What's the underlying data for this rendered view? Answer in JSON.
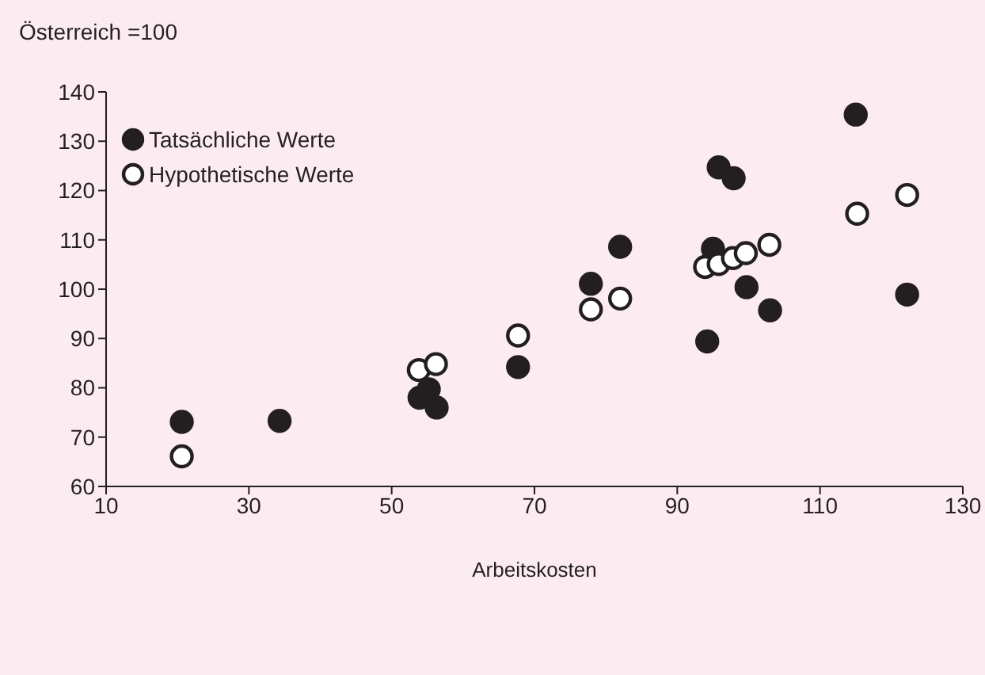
{
  "chart_data": {
    "type": "scatter",
    "ylabel": "Österreich =100",
    "xlabel": "Arbeitskosten",
    "xlim": [
      10,
      130
    ],
    "xticks": [
      10,
      30,
      50,
      70,
      90,
      110,
      130
    ],
    "ylim": [
      60,
      140
    ],
    "yticks": [
      60,
      70,
      80,
      90,
      100,
      110,
      120,
      130,
      140
    ],
    "grid": false,
    "legend": "top left",
    "marker": "circle",
    "series": [
      {
        "name": "Tatsächliche Werte",
        "color": "#231f20",
        "x": [
          20.6,
          34.3,
          53.9,
          55.2,
          56.3,
          67.7,
          77.9,
          82.0,
          94.2,
          95.0,
          95.8,
          97.9,
          99.7,
          103.0,
          115.0,
          122.2
        ],
        "values": [
          73.1,
          73.3,
          78.0,
          79.7,
          76.0,
          84.2,
          101.1,
          108.6,
          89.4,
          108.2,
          124.7,
          122.5,
          100.4,
          95.7,
          135.4,
          98.9
        ]
      },
      {
        "name": "Hypothetische Werte",
        "color": "#ffffff",
        "x": [
          20.6,
          53.8,
          56.2,
          67.7,
          77.9,
          82.0,
          93.9,
          95.8,
          97.8,
          99.6,
          102.9,
          115.2,
          122.2
        ],
        "values": [
          66.1,
          83.6,
          84.8,
          90.6,
          95.9,
          98.1,
          104.5,
          105.1,
          106.3,
          107.3,
          109.0,
          115.3,
          119.1
        ]
      }
    ]
  }
}
